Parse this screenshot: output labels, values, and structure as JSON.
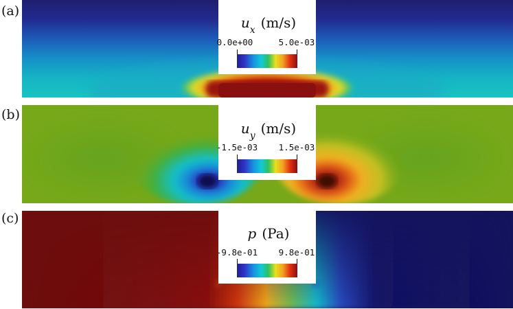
{
  "panels": [
    {
      "label": "(a)",
      "symbol": "u",
      "subscript": "x",
      "unit": "(m/s)",
      "range_min": "0.0e+00",
      "range_max": "5.0e-03",
      "field": "ux"
    },
    {
      "label": "(b)",
      "symbol": "u",
      "subscript": "y",
      "unit": "(m/s)",
      "range_min": "-1.5e-03",
      "range_max": "1.5e-03",
      "field": "uy"
    },
    {
      "label": "(c)",
      "symbol": "p",
      "subscript": "",
      "unit": "(Pa)",
      "range_min": "-9.8e-01",
      "range_max": "9.8e-01",
      "field": "p"
    }
  ],
  "colormap": [
    "#20208a",
    "#3030c8",
    "#1890e0",
    "#10c8d8",
    "#30c060",
    "#e8e020",
    "#f0a020",
    "#e03010",
    "#8a1010"
  ]
}
